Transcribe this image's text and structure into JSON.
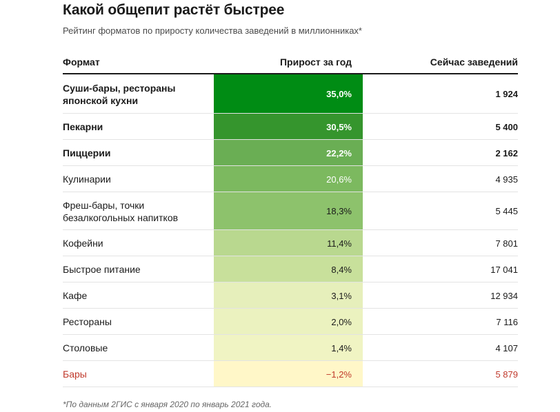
{
  "chart_data": {
    "type": "table",
    "title": "Какой общепит растёт быстрее",
    "subtitle": "Рейтинг форматов по приросту количества заведений в миллионниках*",
    "columns": [
      "Формат",
      "Прирост за год",
      "Сейчас заведений"
    ],
    "rows": [
      {
        "format": "Суши-бары, рестораны японской кухни",
        "growth": 35.0,
        "growth_label": "35,0%",
        "count": 1924,
        "count_label": "1 924",
        "bold": true,
        "color": "#008c14",
        "text_color": "#ffffff"
      },
      {
        "format": "Пекарни",
        "growth": 30.5,
        "growth_label": "30,5%",
        "count": 5400,
        "count_label": "5 400",
        "bold": true,
        "color": "#35952d",
        "text_color": "#ffffff"
      },
      {
        "format": "Пиццерии",
        "growth": 22.2,
        "growth_label": "22,2%",
        "count": 2162,
        "count_label": "2 162",
        "bold": true,
        "color": "#6aae54",
        "text_color": "#ffffff"
      },
      {
        "format": "Кулинарии",
        "growth": 20.6,
        "growth_label": "20,6%",
        "count": 4935,
        "count_label": "4 935",
        "bold": false,
        "color": "#7cb95f",
        "text_color": "#ffffff"
      },
      {
        "format": "Фреш-бары, точки безалкогольных напитков",
        "growth": 18.3,
        "growth_label": "18,3%",
        "count": 5445,
        "count_label": "5 445",
        "bold": false,
        "color": "#8dc26c",
        "text_color": "#1a1a1a"
      },
      {
        "format": "Кофейни",
        "growth": 11.4,
        "growth_label": "11,4%",
        "count": 7801,
        "count_label": "7 801",
        "bold": false,
        "color": "#b9d88f",
        "text_color": "#1a1a1a"
      },
      {
        "format": "Быстрое питание",
        "growth": 8.4,
        "growth_label": "8,4%",
        "count": 17041,
        "count_label": "17 041",
        "bold": false,
        "color": "#c8e09b",
        "text_color": "#1a1a1a"
      },
      {
        "format": "Кафе",
        "growth": 3.1,
        "growth_label": "3,1%",
        "count": 12934,
        "count_label": "12 934",
        "bold": false,
        "color": "#e6efbb",
        "text_color": "#1a1a1a"
      },
      {
        "format": "Рестораны",
        "growth": 2.0,
        "growth_label": "2,0%",
        "count": 7116,
        "count_label": "7 116",
        "bold": false,
        "color": "#ebf2bf",
        "text_color": "#1a1a1a"
      },
      {
        "format": "Столовые",
        "growth": 1.4,
        "growth_label": "1,4%",
        "count": 4107,
        "count_label": "4 107",
        "bold": false,
        "color": "#f0f4c3",
        "text_color": "#1a1a1a"
      },
      {
        "format": "Бары",
        "growth": -1.2,
        "growth_label": "−1,2%",
        "count": 5879,
        "count_label": "5 879",
        "bold": false,
        "negative": true,
        "color": "#fff7c8",
        "text_color": "#c0392b"
      }
    ],
    "footnote": "*По данным 2ГИС с января 2020 по январь 2021 года."
  }
}
